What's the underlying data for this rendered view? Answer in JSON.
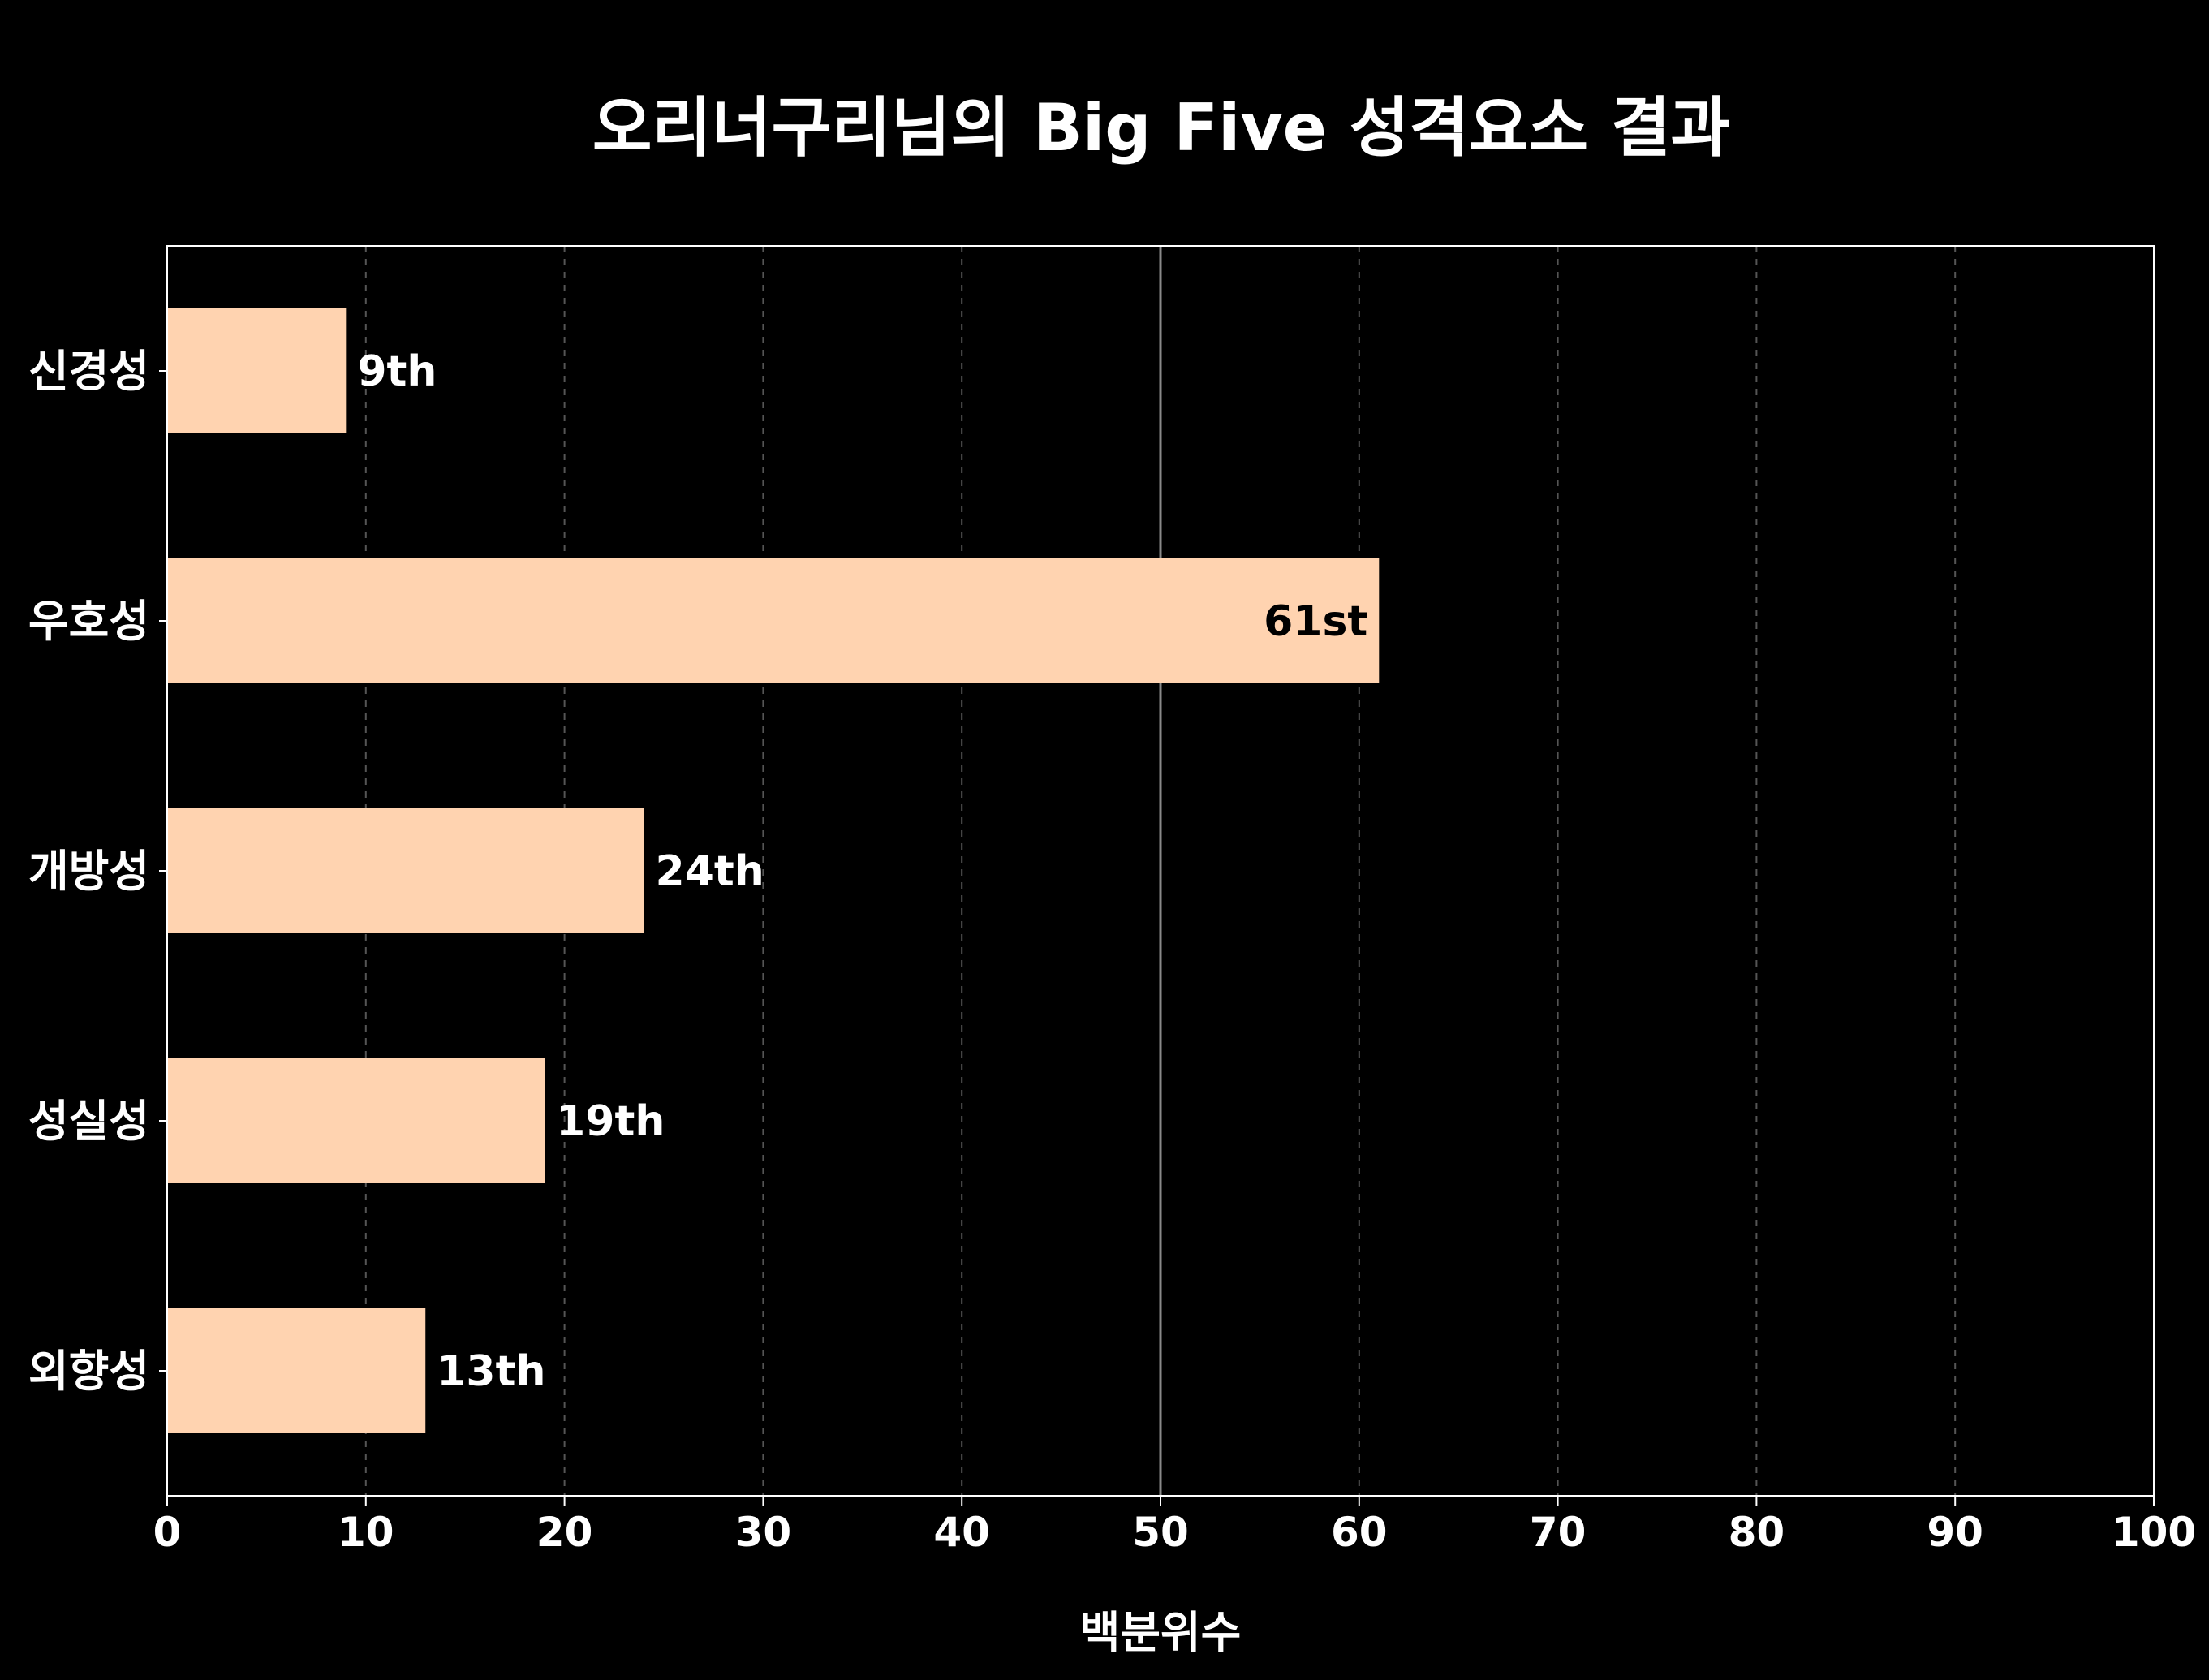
{
  "chart_data": {
    "type": "bar",
    "orientation": "horizontal",
    "title": "오리너구리님의 Big Five 성격요소 결과",
    "xlabel": "백분위수",
    "ylabel": "",
    "categories": [
      "신경성",
      "우호성",
      "개방성",
      "성실성",
      "외향성"
    ],
    "values": [
      9,
      61,
      24,
      19,
      13
    ],
    "data_labels": [
      "9th",
      "61st",
      "24th",
      "19th",
      "13th"
    ],
    "xlim": [
      0,
      100
    ],
    "xticks": [
      "0",
      "10",
      "20",
      "30",
      "40",
      "50",
      "60",
      "70",
      "80",
      "90",
      "100"
    ],
    "grid": "vertical dashed",
    "reference_line": 50,
    "colors": {
      "background": "#000000",
      "bar": "#ffd3b0",
      "text": "#ffffff",
      "inside_label": "#000000",
      "grid": "#555555",
      "axis": "#ffffff"
    }
  }
}
